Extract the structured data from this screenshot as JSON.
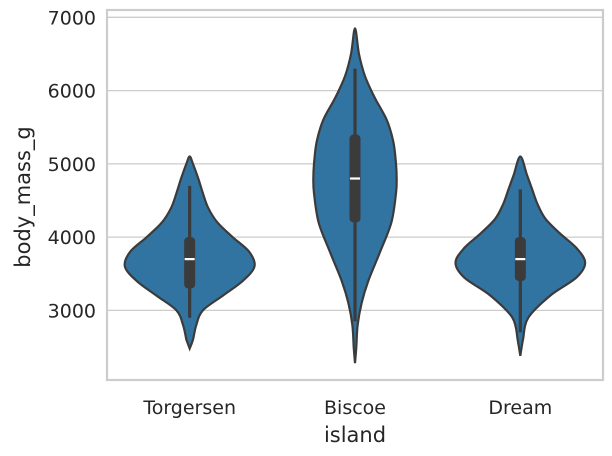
{
  "chart_data": {
    "type": "violin",
    "xlabel": "island",
    "ylabel": "body_mass_g",
    "categories": [
      "Torgersen",
      "Biscoe",
      "Dream"
    ],
    "ylim": [
      2050,
      7100
    ],
    "yticks": [
      3000,
      4000,
      5000,
      6000,
      7000
    ],
    "grid": true,
    "color": "#3274a1",
    "violins": [
      {
        "category": "Torgersen",
        "min": 2900,
        "q1": 3300,
        "median": 3700,
        "q3": 4000,
        "max": 4700,
        "density": [
          [
            2480,
            0.0
          ],
          [
            2600,
            0.05
          ],
          [
            2800,
            0.1
          ],
          [
            3000,
            0.2
          ],
          [
            3200,
            0.5
          ],
          [
            3400,
            0.8
          ],
          [
            3600,
            0.98
          ],
          [
            3800,
            0.9
          ],
          [
            4000,
            0.65
          ],
          [
            4200,
            0.42
          ],
          [
            4400,
            0.28
          ],
          [
            4600,
            0.2
          ],
          [
            4800,
            0.13
          ],
          [
            5000,
            0.05
          ],
          [
            5100,
            0.0
          ]
        ]
      },
      {
        "category": "Biscoe",
        "min": 2850,
        "q1": 4200,
        "median": 4800,
        "q3": 5400,
        "max": 6300,
        "density": [
          [
            2280,
            0.0
          ],
          [
            2500,
            0.02
          ],
          [
            2800,
            0.04
          ],
          [
            3100,
            0.1
          ],
          [
            3400,
            0.2
          ],
          [
            3800,
            0.38
          ],
          [
            4200,
            0.55
          ],
          [
            4600,
            0.62
          ],
          [
            4800,
            0.63
          ],
          [
            5000,
            0.62
          ],
          [
            5300,
            0.58
          ],
          [
            5600,
            0.48
          ],
          [
            5900,
            0.3
          ],
          [
            6200,
            0.15
          ],
          [
            6500,
            0.06
          ],
          [
            6850,
            0.0
          ]
        ]
      },
      {
        "category": "Dream",
        "min": 2700,
        "q1": 3400,
        "median": 3700,
        "q3": 4000,
        "max": 4650,
        "density": [
          [
            2380,
            0.0
          ],
          [
            2600,
            0.04
          ],
          [
            2900,
            0.12
          ],
          [
            3200,
            0.45
          ],
          [
            3450,
            0.85
          ],
          [
            3650,
            0.98
          ],
          [
            3850,
            0.85
          ],
          [
            4050,
            0.6
          ],
          [
            4250,
            0.38
          ],
          [
            4450,
            0.26
          ],
          [
            4650,
            0.18
          ],
          [
            4850,
            0.1
          ],
          [
            5100,
            0.0
          ]
        ]
      }
    ]
  }
}
